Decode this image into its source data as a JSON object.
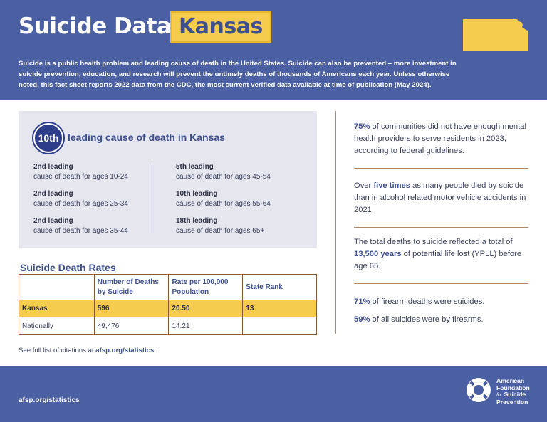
{
  "header": {
    "title": "Suicide Data:",
    "state": "Kansas",
    "intro": "Suicide is a public health problem and leading cause of death in the United States. Suicide can also be prevented – more investment in suicide prevention, education, and research will prevent the untimely deaths of thousands of Americans each year. Unless otherwise noted, this fact sheet reports 2022 data from the CDC, the most current verified data available at time of publication (May 2024).",
    "state_shape_color": "#f5cc4e"
  },
  "leading": {
    "badge": "10th",
    "headline": "leading cause of death in Kansas",
    "left": [
      {
        "rank": "2nd leading",
        "ages": "cause of death for ages 10-24"
      },
      {
        "rank": "2nd leading",
        "ages": "cause of death for ages 25-34"
      },
      {
        "rank": "2nd leading",
        "ages": "cause of death for ages 35-44"
      }
    ],
    "right": [
      {
        "rank": "5th leading",
        "ages": "cause of death for ages 45-54"
      },
      {
        "rank": "10th leading",
        "ages": "cause of death for ages 55-64"
      },
      {
        "rank": "18th leading",
        "ages": "cause of death for ages 65+"
      }
    ]
  },
  "rates": {
    "title": "Suicide Death Rates",
    "headers": [
      "",
      "Number of Deaths by Suicide",
      "Rate per 100,000 Population",
      "State Rank"
    ],
    "state_row": [
      "Kansas",
      "596",
      "20.50",
      "13"
    ],
    "national_row": [
      "Nationally",
      "49,476",
      "14.21",
      ""
    ]
  },
  "citation": {
    "prefix": "See full list of citations at ",
    "link": "afsp.org/statistics",
    "suffix": "."
  },
  "facts": {
    "f1": {
      "strong": "75%",
      "rest": " of communities did not have enough mental health providers to serve residents in 2023, according to federal guidelines."
    },
    "f2": {
      "pre": "Over ",
      "strong": "five times",
      "rest": " as many people died by suicide than in alcohol related motor vehicle accidents in 2021."
    },
    "f3": {
      "pre": "The total deaths to suicide reflected a total of ",
      "strong": "13,500 years",
      "rest": " of potential life lost (YPLL) before age 65."
    },
    "f4": {
      "strong": "71%",
      "rest": " of firearm deaths were suicides."
    },
    "f5": {
      "strong": "59%",
      "rest": " of all suicides were by firearms."
    }
  },
  "footer": {
    "url": "afsp.org/statistics",
    "logo_line1": "American",
    "logo_line2": "Foundation",
    "logo_for": "for",
    "logo_line3": "Suicide",
    "logo_line4": "Prevention",
    "logo_icon": "life-ring-icon"
  },
  "colors": {
    "brand_blue": "#4b5fa3",
    "accent_yellow": "#f5cc4e",
    "dark_blue": "#2e3d8a"
  }
}
